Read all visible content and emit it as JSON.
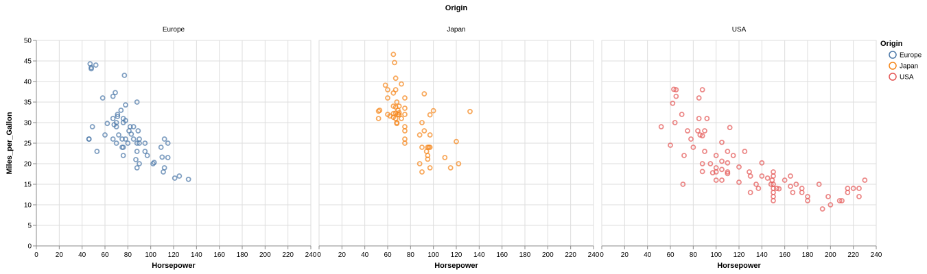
{
  "chart_data": {
    "type": "scatter",
    "title": "Origin",
    "xlabel": "Horsepower",
    "ylabel": "Miles_per_Gallon",
    "xlim": [
      0,
      240
    ],
    "ylim": [
      0,
      50
    ],
    "xticks": [
      0,
      20,
      40,
      60,
      80,
      100,
      120,
      140,
      160,
      180,
      200,
      220,
      240
    ],
    "yticks": [
      0,
      5,
      10,
      15,
      20,
      25,
      30,
      35,
      40,
      45,
      50
    ],
    "grid": true,
    "legend": {
      "title": "Origin",
      "position": "right",
      "items": [
        "Europe",
        "Japan",
        "USA"
      ]
    },
    "colors": {
      "Europe": "#4c78a8",
      "Japan": "#f58518",
      "USA": "#e45756"
    },
    "facets": [
      {
        "name": "Europe",
        "points": [
          [
            46,
            26
          ],
          [
            46,
            26
          ],
          [
            47,
            44.3
          ],
          [
            48,
            43.4
          ],
          [
            48,
            43.1
          ],
          [
            49,
            29
          ],
          [
            52,
            44
          ],
          [
            53,
            23
          ],
          [
            58,
            36
          ],
          [
            60,
            27
          ],
          [
            62,
            29.8
          ],
          [
            67,
            31
          ],
          [
            67,
            26
          ],
          [
            67,
            36.4
          ],
          [
            68,
            29.5
          ],
          [
            69,
            37.3
          ],
          [
            70,
            30
          ],
          [
            70,
            29
          ],
          [
            70,
            25
          ],
          [
            71,
            32
          ],
          [
            71,
            31.5
          ],
          [
            72,
            27
          ],
          [
            74,
            33
          ],
          [
            75,
            24
          ],
          [
            75,
            26
          ],
          [
            76,
            30
          ],
          [
            76,
            24
          ],
          [
            76,
            22
          ],
          [
            76,
            31
          ],
          [
            77,
            41.5
          ],
          [
            78,
            34.3
          ],
          [
            78,
            26
          ],
          [
            78,
            30.5
          ],
          [
            80,
            25
          ],
          [
            81,
            28
          ],
          [
            82,
            29
          ],
          [
            83,
            27.2
          ],
          [
            85,
            29
          ],
          [
            85,
            26
          ],
          [
            87,
            21
          ],
          [
            88,
            25
          ],
          [
            88,
            19
          ],
          [
            88,
            35
          ],
          [
            88,
            23
          ],
          [
            89,
            28
          ],
          [
            90,
            25
          ],
          [
            90,
            26
          ],
          [
            90,
            20
          ],
          [
            95,
            23
          ],
          [
            95,
            25
          ],
          [
            97,
            22
          ],
          [
            102,
            20
          ],
          [
            103,
            20.3
          ],
          [
            109,
            24
          ],
          [
            110,
            21.6
          ],
          [
            111,
            18
          ],
          [
            112,
            19
          ],
          [
            112,
            26
          ],
          [
            115,
            21.5
          ],
          [
            115,
            25
          ],
          [
            121,
            16.5
          ],
          [
            125,
            17
          ],
          [
            133,
            16.2
          ]
        ]
      },
      {
        "name": "Japan",
        "points": [
          [
            52,
            31
          ],
          [
            52,
            32.8
          ],
          [
            53,
            33
          ],
          [
            58,
            39.1
          ],
          [
            60,
            36
          ],
          [
            60,
            38
          ],
          [
            60,
            32
          ],
          [
            62,
            31.6
          ],
          [
            65,
            46.6
          ],
          [
            65,
            37.2
          ],
          [
            65,
            32.2
          ],
          [
            65,
            34
          ],
          [
            65,
            31.3
          ],
          [
            66,
            44.6
          ],
          [
            67,
            32.3
          ],
          [
            67,
            33.8
          ],
          [
            67,
            40.8
          ],
          [
            67,
            38
          ],
          [
            67,
            31
          ],
          [
            68,
            29.8
          ],
          [
            68,
            35
          ],
          [
            68,
            30
          ],
          [
            69,
            32
          ],
          [
            69,
            33
          ],
          [
            70,
            32.4
          ],
          [
            70,
            31.9
          ],
          [
            70,
            34
          ],
          [
            72,
            39.4
          ],
          [
            72,
            31
          ],
          [
            75,
            32
          ],
          [
            75,
            28
          ],
          [
            75,
            25
          ],
          [
            75,
            36
          ],
          [
            75,
            29
          ],
          [
            75,
            33.5
          ],
          [
            75,
            26
          ],
          [
            88,
            27
          ],
          [
            88,
            20
          ],
          [
            90,
            24
          ],
          [
            90,
            18
          ],
          [
            90,
            30
          ],
          [
            92,
            37
          ],
          [
            92,
            28
          ],
          [
            94,
            23
          ],
          [
            95,
            21.1
          ],
          [
            95,
            24
          ],
          [
            95,
            22
          ],
          [
            96,
            24
          ],
          [
            97,
            27
          ],
          [
            97,
            19
          ],
          [
            97,
            31.9
          ],
          [
            97,
            24
          ],
          [
            100,
            32.9
          ],
          [
            110,
            21.5
          ],
          [
            115,
            19
          ],
          [
            120,
            25.4
          ],
          [
            122,
            20
          ],
          [
            132,
            32.7
          ]
        ]
      },
      {
        "name": "USA",
        "points": [
          [
            52,
            29
          ],
          [
            60,
            24.5
          ],
          [
            62,
            34.7
          ],
          [
            63,
            38.1
          ],
          [
            64,
            30
          ],
          [
            65,
            38
          ],
          [
            65,
            36.4
          ],
          [
            70,
            32
          ],
          [
            71,
            15
          ],
          [
            72,
            22
          ],
          [
            75,
            28
          ],
          [
            78,
            26
          ],
          [
            80,
            24
          ],
          [
            84,
            28
          ],
          [
            85,
            36
          ],
          [
            85,
            31
          ],
          [
            86,
            27
          ],
          [
            88,
            38
          ],
          [
            88,
            26.8
          ],
          [
            88,
            20
          ],
          [
            88,
            18.1
          ],
          [
            90,
            28
          ],
          [
            90,
            23
          ],
          [
            92,
            31
          ],
          [
            95,
            20
          ],
          [
            97,
            17.8
          ],
          [
            100,
            18
          ],
          [
            100,
            22
          ],
          [
            100,
            16
          ],
          [
            100,
            19
          ],
          [
            105,
            20.6
          ],
          [
            105,
            25.2
          ],
          [
            105,
            18.6
          ],
          [
            105,
            16
          ],
          [
            110,
            23
          ],
          [
            110,
            20.2
          ],
          [
            110,
            17.6
          ],
          [
            110,
            18
          ],
          [
            112,
            28.8
          ],
          [
            115,
            22
          ],
          [
            120,
            15.5
          ],
          [
            120,
            19.2
          ],
          [
            125,
            23
          ],
          [
            129,
            18
          ],
          [
            130,
            13
          ],
          [
            130,
            17
          ],
          [
            135,
            15
          ],
          [
            137,
            14
          ],
          [
            140,
            17
          ],
          [
            140,
            20.2
          ],
          [
            145,
            16.5
          ],
          [
            148,
            15
          ],
          [
            149,
            16
          ],
          [
            150,
            14
          ],
          [
            150,
            15
          ],
          [
            150,
            13
          ],
          [
            150,
            18
          ],
          [
            150,
            11
          ],
          [
            150,
            12
          ],
          [
            150,
            17
          ],
          [
            153,
            14
          ],
          [
            155,
            13.9
          ],
          [
            160,
            16
          ],
          [
            165,
            17
          ],
          [
            165,
            14.5
          ],
          [
            167,
            13
          ],
          [
            170,
            15
          ],
          [
            175,
            13
          ],
          [
            175,
            14
          ],
          [
            180,
            12
          ],
          [
            180,
            11
          ],
          [
            190,
            15
          ],
          [
            193,
            9
          ],
          [
            198,
            12
          ],
          [
            200,
            10
          ],
          [
            208,
            11
          ],
          [
            210,
            11
          ],
          [
            215,
            13
          ],
          [
            215,
            14
          ],
          [
            220,
            14
          ],
          [
            225,
            14
          ],
          [
            225,
            12
          ],
          [
            230,
            16
          ]
        ]
      }
    ]
  }
}
